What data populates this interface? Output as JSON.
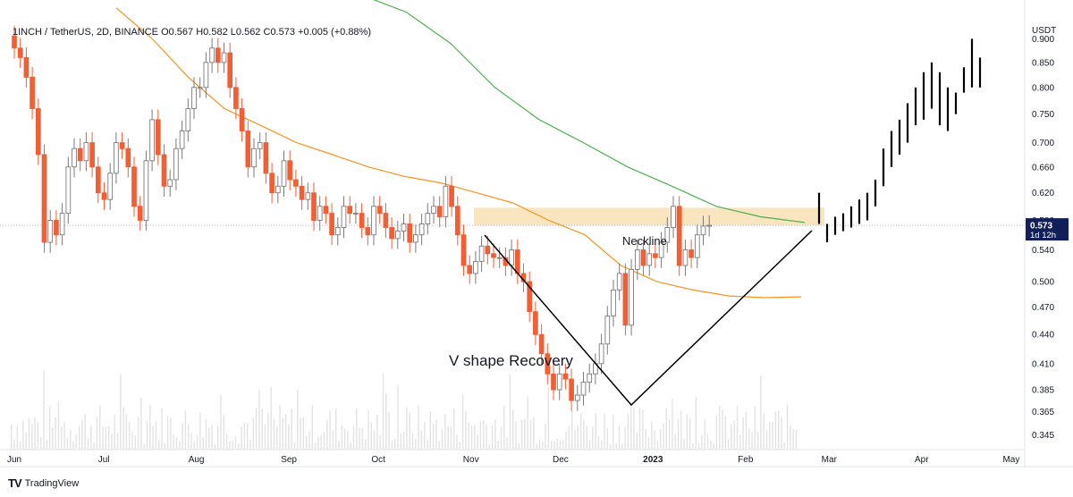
{
  "header": {
    "symbol": "1INCH / TetherUS, 2D, BINANCE",
    "open": "O0.567",
    "high": "H0.582",
    "low": "L0.562",
    "close": "C0.573",
    "change": "+0.005 (+0.88%)"
  },
  "footer": {
    "brand": "TradingView",
    "logo": "TV"
  },
  "colors": {
    "up": "#9e9e9e",
    "down": "#f25f35",
    "projection": "#000000",
    "ma_orange": "#f7931e",
    "ma_green": "#4caf50",
    "zone": "#f8e1b5",
    "price_label_bg": "#131f59"
  },
  "chart_data": {
    "type": "candlestick",
    "ylabel": "USDT",
    "y_scale": "log",
    "ylim": [
      0.33,
      0.96
    ],
    "y_ticks": [
      0.345,
      0.365,
      0.385,
      0.41,
      0.44,
      0.47,
      0.5,
      0.54,
      0.58,
      0.62,
      0.66,
      0.7,
      0.75,
      0.8,
      0.85,
      0.9
    ],
    "y_tick_labels": [
      "0.345",
      "0.365",
      "0.385",
      "0.410",
      "0.440",
      "0.470",
      "0.500",
      "0.540",
      "0.580",
      "0.620",
      "0.660",
      "0.700",
      "0.750",
      "0.800",
      "0.850",
      "0.900"
    ],
    "x_start": "2022-06-01",
    "x_ticks": [
      {
        "label": "Jun",
        "date": "2022-06-01"
      },
      {
        "label": "Jul",
        "date": "2022-07-01"
      },
      {
        "label": "Aug",
        "date": "2022-08-01"
      },
      {
        "label": "Sep",
        "date": "2022-09-01"
      },
      {
        "label": "Oct",
        "date": "2022-10-01"
      },
      {
        "label": "Nov",
        "date": "2022-11-01"
      },
      {
        "label": "Dec",
        "date": "2022-12-01"
      },
      {
        "label": "2023",
        "date": "2023-01-01"
      },
      {
        "label": "Feb",
        "date": "2023-02-01"
      },
      {
        "label": "Mar",
        "date": "2023-03-01"
      },
      {
        "label": "Apr",
        "date": "2023-04-01"
      },
      {
        "label": "May",
        "date": "2023-05-01"
      }
    ],
    "last_price": "0.573",
    "last_price_value": 0.573,
    "last_price_countdown": "1d 12h",
    "close": [
      0.88,
      0.86,
      0.82,
      0.76,
      0.68,
      0.55,
      0.58,
      0.56,
      0.59,
      0.66,
      0.69,
      0.67,
      0.7,
      0.66,
      0.62,
      0.61,
      0.65,
      0.7,
      0.69,
      0.66,
      0.6,
      0.58,
      0.67,
      0.74,
      0.68,
      0.63,
      0.64,
      0.69,
      0.72,
      0.76,
      0.8,
      0.8,
      0.85,
      0.88,
      0.85,
      0.87,
      0.8,
      0.76,
      0.72,
      0.66,
      0.69,
      0.7,
      0.65,
      0.62,
      0.63,
      0.67,
      0.64,
      0.63,
      0.61,
      0.62,
      0.58,
      0.6,
      0.59,
      0.56,
      0.57,
      0.6,
      0.59,
      0.59,
      0.57,
      0.56,
      0.6,
      0.59,
      0.57,
      0.555,
      0.565,
      0.575,
      0.55,
      0.56,
      0.575,
      0.59,
      0.6,
      0.585,
      0.63,
      0.6,
      0.56,
      0.52,
      0.51,
      0.525,
      0.545,
      0.535,
      0.53,
      0.53,
      0.52,
      0.54,
      0.51,
      0.5,
      0.465,
      0.44,
      0.42,
      0.4,
      0.385,
      0.4,
      0.395,
      0.375,
      0.38,
      0.392,
      0.4,
      0.41,
      0.43,
      0.46,
      0.49,
      0.51,
      0.45,
      0.515,
      0.54,
      0.52,
      0.535,
      0.53,
      0.55,
      0.57,
      0.6,
      0.52,
      0.54,
      0.53,
      0.56,
      0.572,
      0.573
    ],
    "ma_orange": [
      0.97,
      0.9,
      0.82,
      0.76,
      0.73,
      0.7,
      0.68,
      0.66,
      0.645,
      0.635,
      0.62,
      0.605,
      0.58,
      0.56,
      0.52,
      0.5,
      0.49,
      0.483,
      0.481,
      0.482
    ],
    "ma_green": [
      1.0,
      0.96,
      0.89,
      0.8,
      0.74,
      0.7,
      0.66,
      0.63,
      0.6,
      0.585,
      0.577
    ],
    "projection": [
      [
        0.575,
        0.62
      ],
      [
        0.55,
        0.575
      ],
      [
        0.56,
        0.585
      ],
      [
        0.565,
        0.59
      ],
      [
        0.57,
        0.6
      ],
      [
        0.575,
        0.61
      ],
      [
        0.58,
        0.62
      ],
      [
        0.6,
        0.64
      ],
      [
        0.63,
        0.69
      ],
      [
        0.66,
        0.72
      ],
      [
        0.68,
        0.74
      ],
      [
        0.7,
        0.77
      ],
      [
        0.73,
        0.8
      ],
      [
        0.74,
        0.83
      ],
      [
        0.76,
        0.85
      ],
      [
        0.73,
        0.83
      ],
      [
        0.72,
        0.8
      ],
      [
        0.75,
        0.79
      ],
      [
        0.79,
        0.84
      ],
      [
        0.8,
        0.9
      ],
      [
        0.8,
        0.86
      ]
    ],
    "annotations": {
      "neckline_label": "Neckline",
      "pattern_label": "V shape Recovery",
      "neckline_zone": [
        0.573,
        0.598
      ]
    }
  }
}
